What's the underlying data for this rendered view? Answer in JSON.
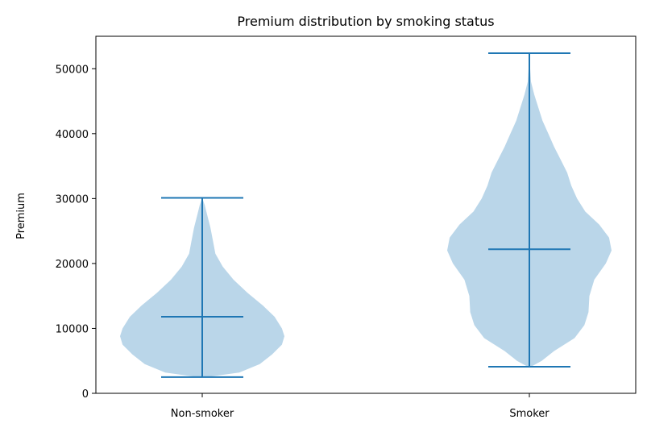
{
  "chart_data": {
    "type": "violin",
    "title": "Premium distribution by smoking status",
    "xlabel": "",
    "ylabel": "Premium",
    "ylim": [
      0,
      55000
    ],
    "yticks": [
      0,
      10000,
      20000,
      30000,
      40000,
      50000
    ],
    "ytick_labels": [
      "0",
      "10000",
      "20000",
      "30000",
      "40000",
      "50000"
    ],
    "grid": false,
    "categories": [
      "Non-smoker",
      "Smoker"
    ],
    "series": [
      {
        "category": "Non-smoker",
        "min": 2500,
        "max": 30100,
        "median": 11800,
        "density": [
          [
            2500,
            0.05
          ],
          [
            3200,
            0.45
          ],
          [
            4500,
            0.7
          ],
          [
            6000,
            0.85
          ],
          [
            7500,
            0.97
          ],
          [
            8800,
            1.0
          ],
          [
            10000,
            0.97
          ],
          [
            11800,
            0.88
          ],
          [
            13500,
            0.74
          ],
          [
            15500,
            0.55
          ],
          [
            17500,
            0.38
          ],
          [
            19500,
            0.25
          ],
          [
            21500,
            0.16
          ],
          [
            23500,
            0.13
          ],
          [
            25500,
            0.1
          ],
          [
            27500,
            0.06
          ],
          [
            29000,
            0.03
          ],
          [
            30100,
            0.0
          ]
        ]
      },
      {
        "category": "Smoker",
        "min": 4100,
        "max": 52400,
        "median": 22200,
        "density": [
          [
            4100,
            0.02
          ],
          [
            5000,
            0.15
          ],
          [
            6500,
            0.3
          ],
          [
            8500,
            0.55
          ],
          [
            10500,
            0.67
          ],
          [
            12500,
            0.72
          ],
          [
            15000,
            0.73
          ],
          [
            17500,
            0.79
          ],
          [
            20000,
            0.93
          ],
          [
            22000,
            1.0
          ],
          [
            24000,
            0.97
          ],
          [
            26000,
            0.85
          ],
          [
            28000,
            0.68
          ],
          [
            30000,
            0.58
          ],
          [
            32000,
            0.51
          ],
          [
            34000,
            0.46
          ],
          [
            36000,
            0.38
          ],
          [
            38000,
            0.3
          ],
          [
            40000,
            0.23
          ],
          [
            42000,
            0.16
          ],
          [
            44000,
            0.11
          ],
          [
            46000,
            0.06
          ],
          [
            48000,
            0.02
          ],
          [
            50000,
            0.01
          ],
          [
            52400,
            0.0
          ]
        ]
      }
    ],
    "colors": {
      "fill": "#bad6e9",
      "line": "#1f77b4",
      "axis": "#000000"
    }
  }
}
